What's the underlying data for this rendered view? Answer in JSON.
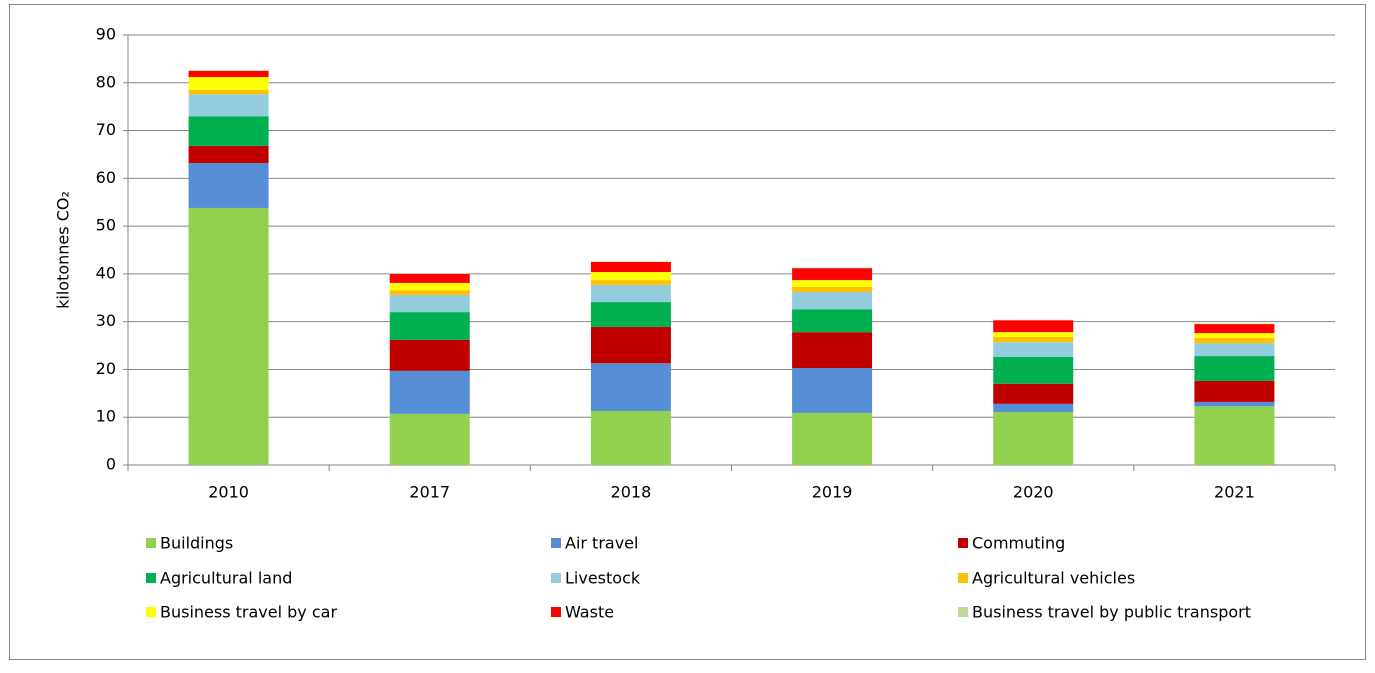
{
  "chart_data": {
    "type": "stacked_bar",
    "y_label": "kilotonnes CO₂",
    "categories": [
      "2010",
      "2017",
      "2018",
      "2019",
      "2020",
      "2021"
    ],
    "ylim": [
      0,
      90
    ],
    "yticks": [
      0,
      10,
      20,
      30,
      40,
      50,
      60,
      70,
      80,
      90
    ],
    "grid": true,
    "series": [
      {
        "name": "Buildings",
        "color": "#92d050",
        "values": [
          53.8,
          10.7,
          11.3,
          10.9,
          11.1,
          12.3
        ]
      },
      {
        "name": "Air travel",
        "color": "#558ed5",
        "values": [
          9.4,
          9.0,
          10.0,
          9.4,
          1.7,
          0.9
        ]
      },
      {
        "name": "Commuting",
        "color": "#c00000",
        "values": [
          3.6,
          6.5,
          7.6,
          7.5,
          4.2,
          4.4
        ]
      },
      {
        "name": "Agricultural land",
        "color": "#00b050",
        "values": [
          6.2,
          5.8,
          5.2,
          4.8,
          5.6,
          5.2
        ]
      },
      {
        "name": "Livestock",
        "color": "#93cddd",
        "values": [
          4.6,
          3.6,
          3.6,
          3.6,
          3.1,
          2.7
        ]
      },
      {
        "name": "Agricultural vehicles",
        "color": "#ffc000",
        "values": [
          0.9,
          1.0,
          1.0,
          1.1,
          1.1,
          1.1
        ]
      },
      {
        "name": "Business travel by car",
        "color": "#ffff00",
        "values": [
          2.7,
          1.5,
          1.7,
          1.4,
          1.0,
          1.0
        ]
      },
      {
        "name": "Waste",
        "color": "#ff0000",
        "values": [
          1.3,
          1.9,
          2.1,
          2.5,
          2.5,
          1.9
        ]
      },
      {
        "name": "Business travel by public transport",
        "color": "#c3d69b",
        "values": [
          0.1,
          0.1,
          0.1,
          0.1,
          0.1,
          0.1
        ]
      }
    ]
  }
}
